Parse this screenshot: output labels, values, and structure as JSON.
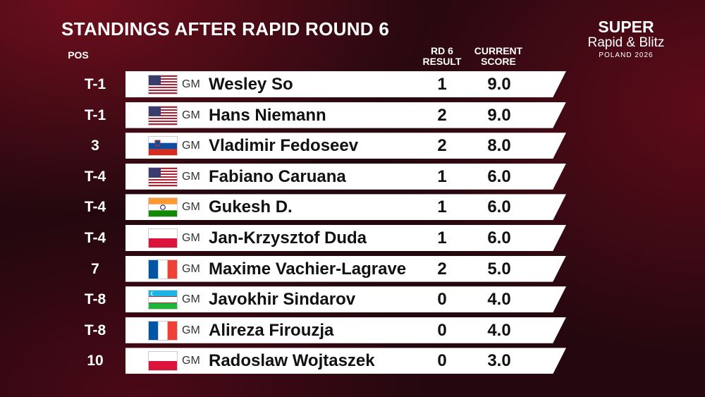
{
  "header": {
    "title": "STANDINGS AFTER RAPID ROUND 6",
    "pos_label": "POS",
    "result_label": [
      "RD 6",
      "RESULT"
    ],
    "score_label": [
      "CURRENT",
      "SCORE"
    ]
  },
  "logo": {
    "line1": "SUPER",
    "line2": "Rapid & Blitz",
    "line3": "POLAND 2026"
  },
  "table": {
    "rows": [
      [
        "T-1",
        "GM",
        "Wesley So",
        "1",
        "9.0"
      ],
      [
        "T-1",
        "GM",
        "Hans Niemann",
        "2",
        "9.0"
      ],
      [
        "3",
        "GM",
        "Vladimir Fedoseev",
        "2",
        "8.0"
      ],
      [
        "T-4",
        "GM",
        "Fabiano Caruana",
        "1",
        "6.0"
      ],
      [
        "T-4",
        "GM",
        "Gukesh D.",
        "1",
        "6.0"
      ],
      [
        "T-4",
        "GM",
        "Jan-Krzysztof Duda",
        "1",
        "6.0"
      ],
      [
        "7",
        "GM",
        "Maxime Vachier-Lagrave",
        "2",
        "5.0"
      ],
      [
        "T-8",
        "GM",
        "Javokhir Sindarov",
        "0",
        "4.0"
      ],
      [
        "T-8",
        "GM",
        "Alireza Firouzja",
        "0",
        "4.0"
      ],
      [
        "10",
        "GM",
        "Radoslaw Wojtaszek",
        "0",
        "3.0"
      ]
    ]
  }
}
